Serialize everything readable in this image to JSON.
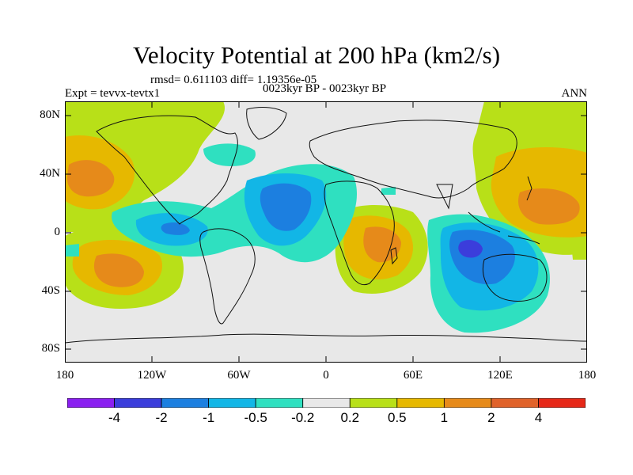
{
  "title": "Velocity Potential at 200 hPa (km2/s)",
  "stats": "rmsd= 0.611103 diff= 1.19356e-05",
  "expt": "Expt = tevvx-tevtx1",
  "period": "0023kyr BP - 0023kyr BP",
  "season": "ANN",
  "lat_ticks": [
    "80N",
    "40N",
    "0",
    "40S",
    "80S"
  ],
  "lon_ticks": [
    "180",
    "120W",
    "60W",
    "0",
    "60E",
    "120E",
    "180"
  ],
  "colorbar": {
    "colors": [
      "#8a1ff0",
      "#3b3ddb",
      "#1c7fe0",
      "#12b6e6",
      "#2fe0c0",
      "#e8e8e8",
      "#b8e018",
      "#e6b800",
      "#e68a1a",
      "#e0622a",
      "#e62818"
    ],
    "labels": [
      "-4",
      "-2",
      "-1",
      "-0.5",
      "-0.2",
      "0.2",
      "0.5",
      "1",
      "2",
      "4"
    ]
  },
  "map_colors": {
    "ocean": "#e8e8e8",
    "coast": "#111111"
  }
}
